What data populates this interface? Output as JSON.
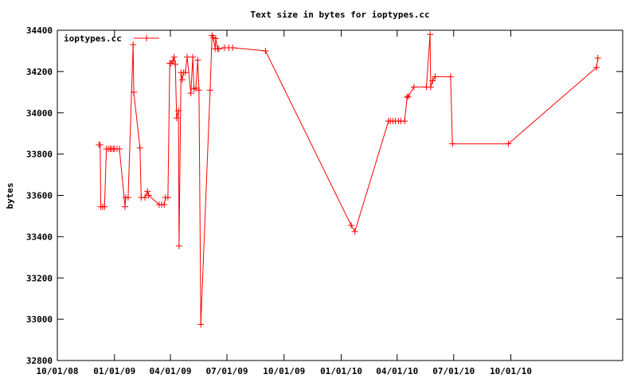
{
  "chart_data": {
    "type": "line",
    "title": "Text size in bytes for ioptypes.cc",
    "y_label": "bytes",
    "legend": "upper left",
    "xlim": [
      "2008-10-01",
      "2011-03-30"
    ],
    "xticks": [
      {
        "value": "2008-10-01",
        "label": "10/01/08"
      },
      {
        "value": "2009-01-01",
        "label": "01/01/09"
      },
      {
        "value": "2009-04-01",
        "label": "04/01/09"
      },
      {
        "value": "2009-07-01",
        "label": "07/01/09"
      },
      {
        "value": "2009-10-01",
        "label": "10/01/09"
      },
      {
        "value": "2010-01-01",
        "label": "01/01/10"
      },
      {
        "value": "2010-04-01",
        "label": "04/01/10"
      },
      {
        "value": "2010-07-01",
        "label": "07/01/10"
      },
      {
        "value": "2010-10-01",
        "label": "10/01/10"
      }
    ],
    "ylim": [
      32800,
      34400
    ],
    "yticks": [
      32800,
      33000,
      33200,
      33400,
      33600,
      33800,
      34000,
      34200,
      34400
    ],
    "series": [
      {
        "name": "ioptypes.cc",
        "color": "#ff0000",
        "x": [
          "2008-12-07",
          "2008-12-09",
          "2008-12-10",
          "2008-12-13",
          "2008-12-16",
          "2008-12-19",
          "2008-12-22",
          "2008-12-25",
          "2008-12-27",
          "2008-12-30",
          "2009-01-01",
          "2009-01-05",
          "2009-01-09",
          "2009-01-18",
          "2009-01-19",
          "2009-01-23",
          "2009-01-31",
          "2009-02-01",
          "2009-02-11",
          "2009-02-13",
          "2009-02-19",
          "2009-02-23",
          "2009-02-25",
          "2009-03-14",
          "2009-03-18",
          "2009-03-22",
          "2009-03-24",
          "2009-03-28",
          "2009-03-31",
          "2009-04-02",
          "2009-04-05",
          "2009-04-07",
          "2009-04-09",
          "2009-04-11",
          "2009-04-14",
          "2009-04-15",
          "2009-04-18",
          "2009-04-20",
          "2009-04-22",
          "2009-04-25",
          "2009-04-28",
          "2009-05-04",
          "2009-05-07",
          "2009-05-09",
          "2009-05-12",
          "2009-05-15",
          "2009-05-17",
          "2009-05-20",
          "2009-06-04",
          "2009-06-07",
          "2009-06-09",
          "2009-06-12",
          "2009-06-13",
          "2009-06-16",
          "2009-06-18",
          "2009-06-27",
          "2009-07-04",
          "2009-07-10",
          "2009-09-01",
          "2010-01-17",
          "2010-01-23",
          "2010-03-18",
          "2010-03-21",
          "2010-03-25",
          "2010-03-29",
          "2010-04-03",
          "2010-04-07",
          "2010-04-13",
          "2010-04-17",
          "2010-04-19",
          "2010-04-28",
          "2010-05-18",
          "2010-05-24",
          "2010-05-25",
          "2010-05-28",
          "2010-06-01",
          "2010-06-26",
          "2010-06-29",
          "2010-09-27",
          "2011-02-16",
          "2011-02-18"
        ],
        "values": [
          33845,
          33845,
          33545,
          33545,
          33545,
          33825,
          33825,
          33825,
          33825,
          33825,
          33825,
          33825,
          33825,
          33545,
          33590,
          33590,
          34330,
          34100,
          33830,
          33590,
          33590,
          33620,
          33600,
          33555,
          33555,
          33555,
          33590,
          33590,
          34240,
          34240,
          34250,
          34270,
          34235,
          33975,
          34010,
          33355,
          34195,
          34160,
          34195,
          34195,
          34270,
          34095,
          34270,
          34115,
          34120,
          34255,
          34110,
          32975,
          34110,
          34375,
          34365,
          34310,
          34360,
          34310,
          34310,
          34315,
          34315,
          34315,
          34300,
          33455,
          33425,
          33960,
          33960,
          33960,
          33960,
          33960,
          33960,
          33960,
          34075,
          34080,
          34125,
          34125,
          34380,
          34125,
          34155,
          34175,
          34175,
          33850,
          33850,
          34220,
          34265
        ]
      }
    ]
  }
}
